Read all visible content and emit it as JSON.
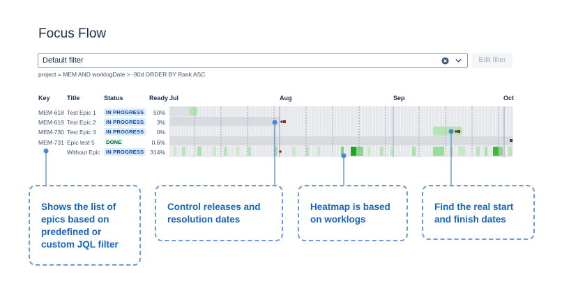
{
  "page_title": "Focus Flow",
  "filter": {
    "value": "Default filter",
    "clear_icon": "clear-circle-icon",
    "dropdown_icon": "chevron-down-icon",
    "edit_label": "Edit filter",
    "jql": "project = MEM AND worklogDate > -90d ORDER BY Rank ASC"
  },
  "table": {
    "headers": {
      "key": "Key",
      "title": "Title",
      "status": "Status",
      "ready": "Ready"
    },
    "months": [
      "Jul",
      "Aug",
      "Sep",
      "Oct"
    ],
    "rows": [
      {
        "key": "MEM-618",
        "title": "Test Epic 1",
        "status": "IN PROGRESS",
        "ready": "50%"
      },
      {
        "key": "MEM-619",
        "title": "Test Epic 2",
        "status": "IN PROGRESS",
        "ready": "3%"
      },
      {
        "key": "MEM-730",
        "title": "Test Epic 3",
        "status": "IN PROGRESS",
        "ready": "0%"
      },
      {
        "key": "MEM-731",
        "title": "Epic test 5",
        "status": "DONE",
        "ready": "0.6%"
      },
      {
        "key": "",
        "title": "Without Epic",
        "status": "IN PROGRESS",
        "ready": "314%"
      }
    ]
  },
  "callouts": {
    "epics": [
      "Shows the list of",
      "epics based on",
      "predefined or",
      "custom JQL filter"
    ],
    "releases": [
      "Control releases and",
      "resolution dates"
    ],
    "heatmap": [
      "Heatmap is based",
      "on worklogs"
    ],
    "dates": [
      "Find the real start",
      "and finish dates"
    ]
  },
  "colors": {
    "accent": "#1565c0",
    "in_progress_bg": "#deebff",
    "in_progress_fg": "#0747a6",
    "done_bg": "#e3fcef",
    "done_fg": "#006644",
    "heat_light": "#c3e8c3",
    "heat_mid": "#6fcf6f",
    "heat_dark": "#1fa51f",
    "release_marker": "#7a2a3a"
  }
}
